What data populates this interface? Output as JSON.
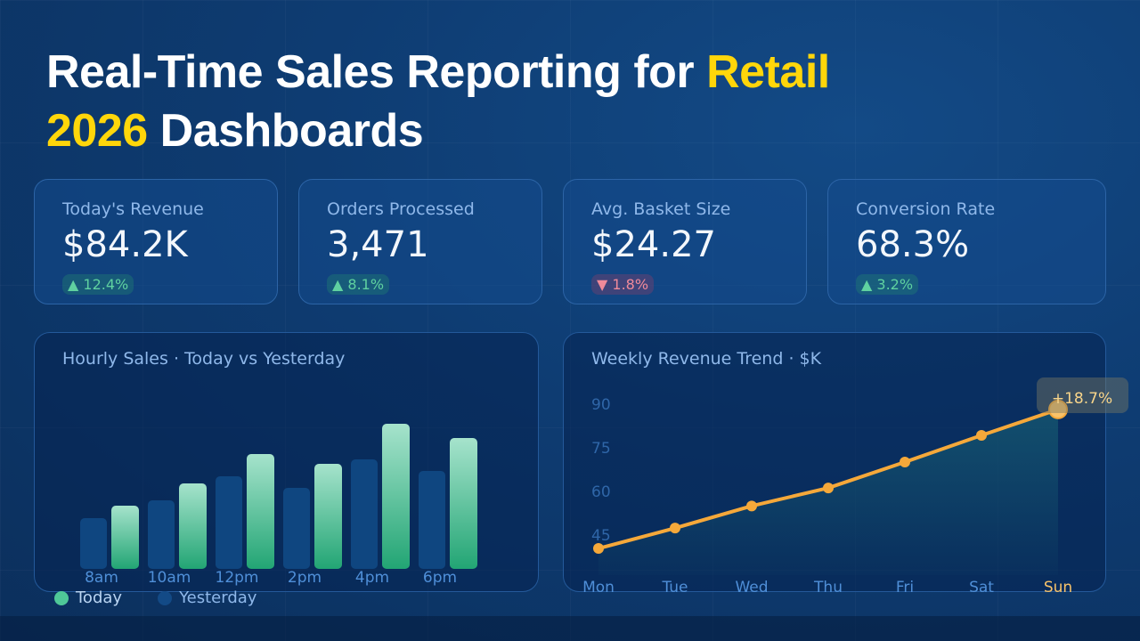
{
  "headline": {
    "line1_prefix": "Real-Time Sales Reporting for ",
    "line1_highlight": "Retail",
    "line2_highlight": "2026",
    "line2_suffix": " Dashboards"
  },
  "colors": {
    "accent": "#ffd60a",
    "positive": "#5fd1a0",
    "negative": "#f08a9a",
    "today_bar": "#3fbf8c",
    "yesterday_bar": "#0f4680",
    "line": "#f5a83a"
  },
  "kpis": [
    {
      "label": "Today's Revenue",
      "value": "$84.2K",
      "delta": "▲ 12.4%",
      "trend": "up"
    },
    {
      "label": "Orders Processed",
      "value": "3,471",
      "delta": "▲ 8.1%",
      "trend": "up"
    },
    {
      "label": "Avg. Basket Size",
      "value": "$24.27",
      "delta": "▼ 1.8%",
      "trend": "down"
    },
    {
      "label": "Conversion Rate",
      "value": "68.3%",
      "delta": "▲ 3.2%",
      "trend": "up"
    }
  ],
  "chart_data": [
    {
      "type": "bar",
      "title": "Hourly Sales · Today vs Yesterday",
      "categories": [
        "8am",
        "10am",
        "12pm",
        "2pm",
        "4pm",
        "6pm"
      ],
      "series": [
        {
          "name": "Today",
          "values": [
            71,
            96,
            129,
            118,
            163,
            147
          ]
        },
        {
          "name": "Yesterday",
          "values": [
            57,
            77,
            104,
            91,
            123,
            110
          ]
        }
      ],
      "legend": {
        "position": "bottom-left",
        "labels": [
          "Today",
          "Yesterday"
        ]
      },
      "grid": false
    },
    {
      "type": "line",
      "title": "Weekly Revenue Trend · $K",
      "categories": [
        "Mon",
        "Tue",
        "Wed",
        "Thu",
        "Fri",
        "Sat",
        "Sun"
      ],
      "values": [
        40.4,
        47.4,
        55,
        61.2,
        70.1,
        79.3,
        88.2
      ],
      "yticks": [
        "90",
        "75",
        "60",
        "45"
      ],
      "ylim": [
        40,
        90
      ],
      "annotation": "+18.7%",
      "area_fill": true,
      "grid": false
    }
  ]
}
